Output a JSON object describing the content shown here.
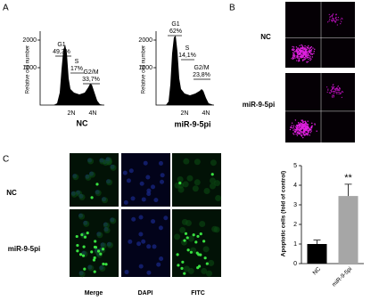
{
  "panels": {
    "a": {
      "label": "A",
      "histograms": [
        {
          "ylabel": "Relative cell number",
          "yticks": [
            2000,
            1000
          ],
          "xticks": [
            "2N",
            "4N"
          ],
          "name": "NC",
          "gates": [
            {
              "phase": "G1",
              "percent": "49,3%"
            },
            {
              "phase": "S",
              "percent": "17%"
            },
            {
              "phase": "G2/M",
              "percent": "33,7%"
            }
          ]
        },
        {
          "ylabel": "Relative cell number",
          "yticks": [
            2000,
            1000
          ],
          "xticks": [
            "2N",
            "4N"
          ],
          "name": "miR-9-5pi",
          "gates": [
            {
              "phase": "G1",
              "percent": "62%"
            },
            {
              "phase": "S",
              "percent": "14,1%"
            },
            {
              "phase": "G2/M",
              "percent": "23,8%"
            }
          ]
        }
      ]
    },
    "b": {
      "label": "B",
      "rows": [
        "NC",
        "miR-9-5pi"
      ]
    },
    "c": {
      "label": "C",
      "rows": [
        "NC",
        "miR-9-5pi"
      ],
      "columns": [
        "Merge",
        "DAPI",
        "FITC"
      ],
      "chart": {
        "type": "bar",
        "ylabel": "Apoptotic cells (fold of control)",
        "categories": [
          "NC",
          "miR-9-5pi"
        ],
        "values": [
          1.0,
          3.45
        ],
        "errors": [
          0.2,
          0.6
        ],
        "colors": [
          "#000000",
          "#a6a6a6"
        ],
        "ylim": [
          0,
          5
        ],
        "yticks": [
          0,
          1,
          2,
          3,
          4,
          5
        ],
        "significance": "**"
      }
    }
  }
}
